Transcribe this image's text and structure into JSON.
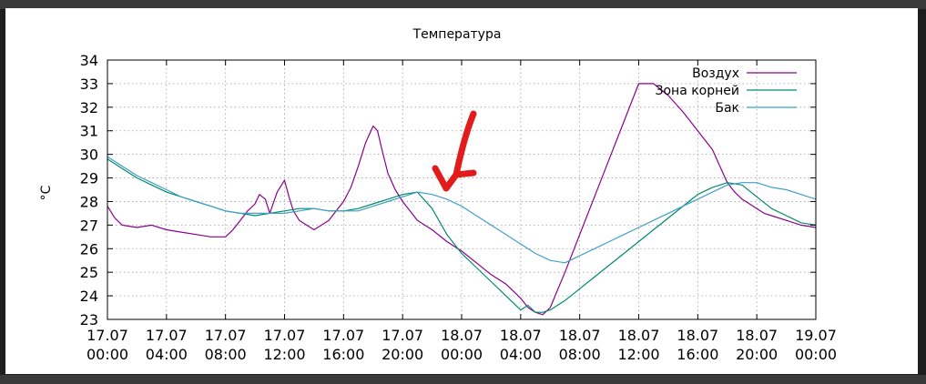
{
  "chart_data": {
    "type": "line",
    "title": "Температура",
    "xlabel": "",
    "ylabel": "°C",
    "ylim": [
      23,
      34
    ],
    "xlim_hours": [
      0,
      48
    ],
    "grid": true,
    "legend_position": "top-right",
    "y_ticks": [
      "23",
      "24",
      "25",
      "26",
      "27",
      "28",
      "29",
      "30",
      "31",
      "32",
      "33",
      "34"
    ],
    "x_ticks": [
      {
        "date": "17.07",
        "time": "00:00"
      },
      {
        "date": "17.07",
        "time": "04:00"
      },
      {
        "date": "17.07",
        "time": "08:00"
      },
      {
        "date": "17.07",
        "time": "12:00"
      },
      {
        "date": "17.07",
        "time": "16:00"
      },
      {
        "date": "17.07",
        "time": "20:00"
      },
      {
        "date": "18.07",
        "time": "00:00"
      },
      {
        "date": "18.07",
        "time": "04:00"
      },
      {
        "date": "18.07",
        "time": "08:00"
      },
      {
        "date": "18.07",
        "time": "12:00"
      },
      {
        "date": "18.07",
        "time": "16:00"
      },
      {
        "date": "18.07",
        "time": "20:00"
      },
      {
        "date": "19.07",
        "time": "00:00"
      }
    ],
    "series": [
      {
        "name": "Воздух",
        "color": "#8b008b",
        "x": [
          0,
          0.5,
          1,
          2,
          3,
          4,
          5,
          6,
          7,
          8,
          8.5,
          9,
          9.5,
          10,
          10.3,
          10.7,
          11,
          11.5,
          12,
          12.3,
          12.6,
          13,
          13.5,
          14,
          14.5,
          15,
          15.5,
          16,
          16.5,
          17,
          17.5,
          18,
          18.3,
          18.6,
          19,
          19.5,
          20,
          20.5,
          21,
          22,
          23,
          24,
          25,
          26,
          27,
          28,
          28.5,
          29,
          29.5,
          30,
          31,
          32,
          33,
          34,
          35,
          36,
          37,
          38,
          39,
          40,
          41,
          41.5,
          42,
          42.5,
          43,
          43.5,
          44,
          44.5,
          45,
          46,
          47,
          48
        ],
        "y": [
          27.8,
          27.3,
          27.0,
          26.9,
          27.0,
          26.8,
          26.7,
          26.6,
          26.5,
          26.5,
          26.8,
          27.2,
          27.6,
          27.9,
          28.3,
          28.1,
          27.5,
          28.4,
          28.9,
          28.2,
          27.6,
          27.2,
          27.0,
          26.8,
          27.0,
          27.2,
          27.6,
          28.0,
          28.6,
          29.5,
          30.5,
          31.2,
          31.0,
          30.2,
          29.2,
          28.5,
          28.0,
          27.6,
          27.2,
          26.8,
          26.3,
          25.9,
          25.4,
          24.9,
          24.5,
          23.9,
          23.5,
          23.3,
          23.2,
          23.5,
          25.0,
          26.6,
          28.2,
          29.8,
          31.4,
          33.0,
          33.0,
          32.5,
          31.8,
          31.0,
          30.2,
          29.5,
          28.8,
          28.4,
          28.1,
          27.9,
          27.7,
          27.5,
          27.4,
          27.2,
          27.0,
          26.9
        ]
      },
      {
        "name": "Зона корней",
        "color": "#008b6b",
        "x": [
          0,
          1,
          2,
          3,
          4,
          5,
          6,
          7,
          8,
          9,
          10,
          11,
          12,
          13,
          14,
          15,
          16,
          17,
          18,
          19,
          20,
          21,
          22,
          23,
          24,
          25,
          26,
          27,
          28,
          28.5,
          29,
          29.5,
          30,
          31,
          32,
          33,
          34,
          35,
          36,
          37,
          38,
          39,
          40,
          41,
          42,
          43,
          44,
          45,
          46,
          47,
          48
        ],
        "y": [
          29.8,
          29.4,
          29.0,
          28.7,
          28.4,
          28.2,
          28.0,
          27.8,
          27.6,
          27.5,
          27.4,
          27.5,
          27.6,
          27.7,
          27.7,
          27.6,
          27.6,
          27.7,
          27.9,
          28.1,
          28.3,
          28.4,
          27.7,
          26.6,
          25.8,
          25.2,
          24.6,
          24.0,
          23.4,
          23.6,
          23.3,
          23.3,
          23.4,
          23.8,
          24.3,
          24.8,
          25.3,
          25.8,
          26.3,
          26.8,
          27.3,
          27.8,
          28.3,
          28.6,
          28.8,
          28.7,
          28.2,
          27.7,
          27.4,
          27.1,
          27.0
        ]
      },
      {
        "name": "Бак",
        "color": "#3fa0c8",
        "x": [
          0,
          1,
          2,
          3,
          4,
          5,
          6,
          7,
          8,
          9,
          10,
          11,
          12,
          13,
          14,
          15,
          16,
          17,
          18,
          19,
          20,
          21,
          22,
          23,
          24,
          25,
          26,
          27,
          28,
          29,
          30,
          31,
          32,
          33,
          34,
          35,
          36,
          37,
          38,
          39,
          40,
          41,
          42,
          43,
          44,
          45,
          46,
          47,
          48
        ],
        "y": [
          29.9,
          29.5,
          29.1,
          28.8,
          28.5,
          28.2,
          28.0,
          27.8,
          27.6,
          27.5,
          27.5,
          27.5,
          27.5,
          27.6,
          27.7,
          27.6,
          27.6,
          27.6,
          27.8,
          28.0,
          28.2,
          28.4,
          28.3,
          28.1,
          27.8,
          27.4,
          27.0,
          26.6,
          26.2,
          25.8,
          25.5,
          25.4,
          25.7,
          26.0,
          26.3,
          26.6,
          26.9,
          27.2,
          27.5,
          27.8,
          28.1,
          28.4,
          28.7,
          28.8,
          28.8,
          28.6,
          28.5,
          28.3,
          28.1
        ]
      }
    ],
    "annotation": {
      "type": "hand-drawn red arrow",
      "color": "#e21b1b"
    }
  }
}
